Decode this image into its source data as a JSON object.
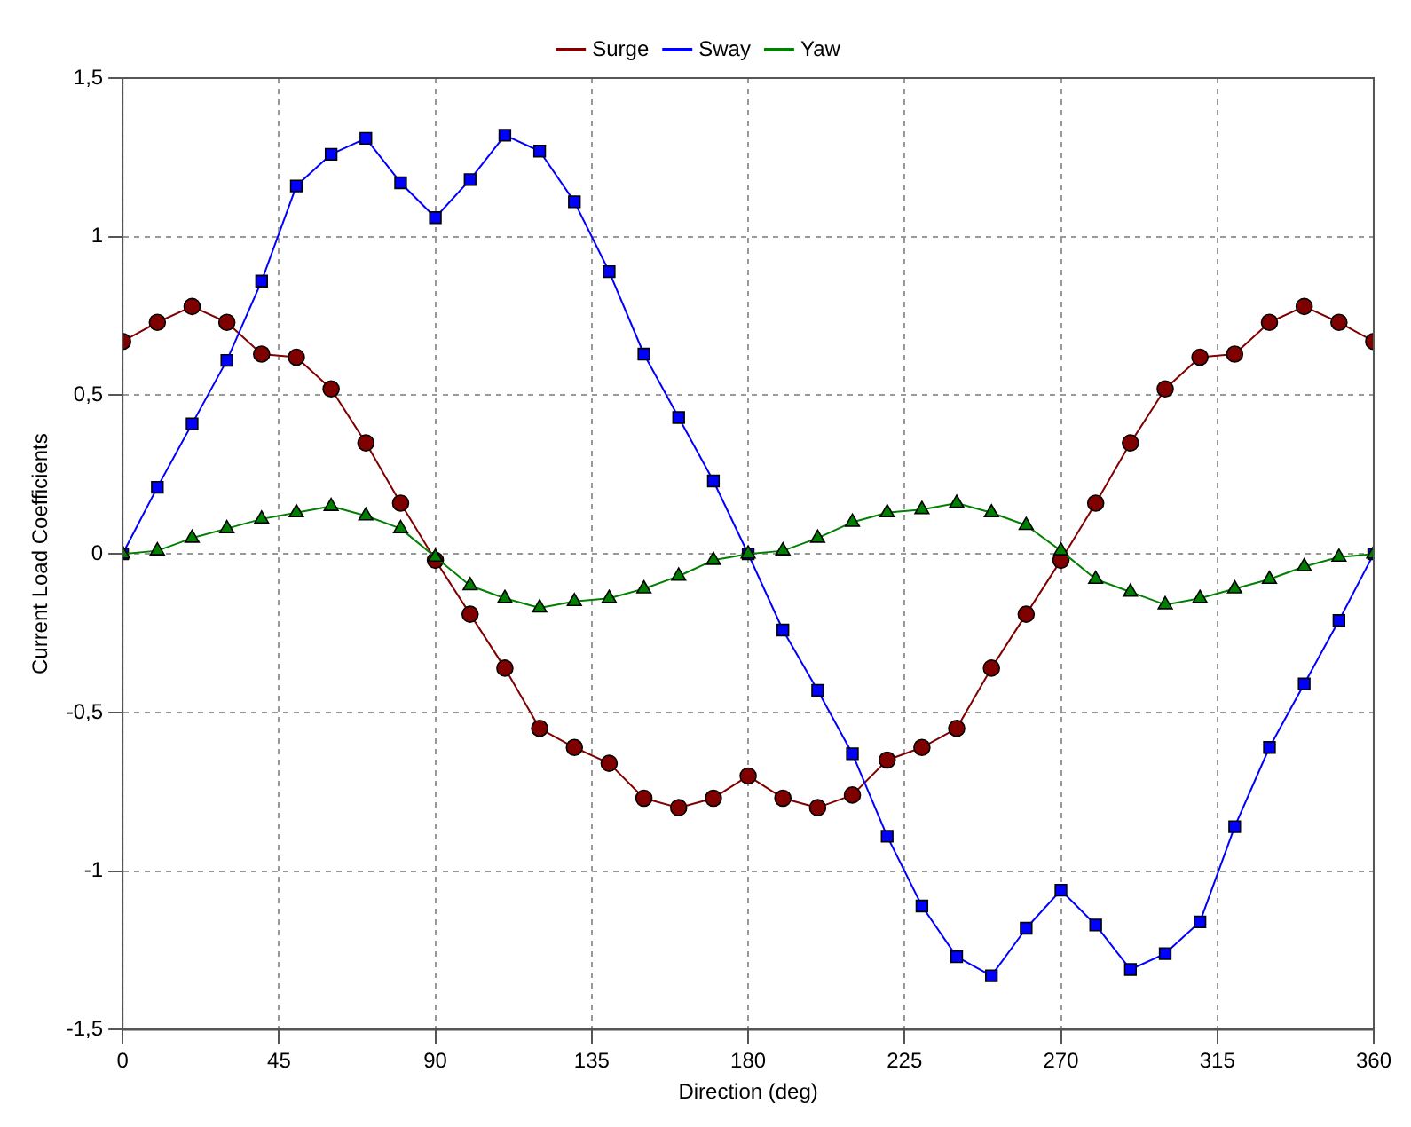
{
  "chart_data": {
    "type": "line",
    "xlabel": "Direction (deg)",
    "ylabel": "Current Load Coefficients",
    "x": [
      0,
      10,
      20,
      30,
      40,
      50,
      60,
      70,
      80,
      90,
      100,
      110,
      120,
      130,
      140,
      150,
      160,
      170,
      180,
      190,
      200,
      210,
      220,
      230,
      240,
      250,
      260,
      270,
      280,
      290,
      300,
      310,
      320,
      330,
      340,
      350,
      360
    ],
    "series": [
      {
        "name": "Surge",
        "color": "#800000",
        "marker": "circle",
        "values": [
          0.67,
          0.73,
          0.78,
          0.73,
          0.63,
          0.62,
          0.52,
          0.35,
          0.16,
          -0.02,
          -0.19,
          -0.36,
          -0.55,
          -0.61,
          -0.66,
          -0.77,
          -0.8,
          -0.77,
          -0.7,
          -0.77,
          -0.8,
          -0.76,
          -0.65,
          -0.61,
          -0.55,
          -0.36,
          -0.19,
          -0.02,
          0.16,
          0.35,
          0.52,
          0.62,
          0.63,
          0.73,
          0.78,
          0.73,
          0.67
        ]
      },
      {
        "name": "Sway",
        "color": "#0000ff",
        "marker": "square",
        "values": [
          0,
          0.21,
          0.41,
          0.61,
          0.86,
          1.16,
          1.26,
          1.31,
          1.17,
          1.06,
          1.18,
          1.32,
          1.27,
          1.11,
          0.89,
          0.63,
          0.43,
          0.23,
          0,
          -0.24,
          -0.43,
          -0.63,
          -0.89,
          -1.11,
          -1.27,
          -1.33,
          -1.18,
          -1.06,
          -1.17,
          -1.31,
          -1.26,
          -1.16,
          -0.86,
          -0.61,
          -0.41,
          -0.21,
          0
        ]
      },
      {
        "name": "Yaw",
        "color": "#008000",
        "marker": "triangle",
        "values": [
          0,
          0.01,
          0.05,
          0.08,
          0.11,
          0.13,
          0.15,
          0.12,
          0.08,
          -0.01,
          -0.1,
          -0.14,
          -0.17,
          -0.15,
          -0.14,
          -0.11,
          -0.07,
          -0.02,
          0,
          0.01,
          0.05,
          0.1,
          0.13,
          0.14,
          0.16,
          0.13,
          0.09,
          0.01,
          -0.08,
          -0.12,
          -0.16,
          -0.14,
          -0.11,
          -0.08,
          -0.04,
          -0.01,
          0
        ]
      }
    ],
    "xlim": [
      0,
      360
    ],
    "xticks": [
      0,
      45,
      90,
      135,
      180,
      225,
      270,
      315,
      360
    ],
    "ylim": [
      -1.5,
      1.5
    ],
    "yticks": [
      {
        "value": -1.5,
        "label": "-1,5"
      },
      {
        "value": -1,
        "label": "-1"
      },
      {
        "value": -0.5,
        "label": "-0,5"
      },
      0,
      {
        "value": 0.5,
        "label": "0,5"
      },
      1,
      {
        "value": 1.5,
        "label": "1,5"
      }
    ],
    "grid": true,
    "legend": "top",
    "line_style": "solid"
  }
}
